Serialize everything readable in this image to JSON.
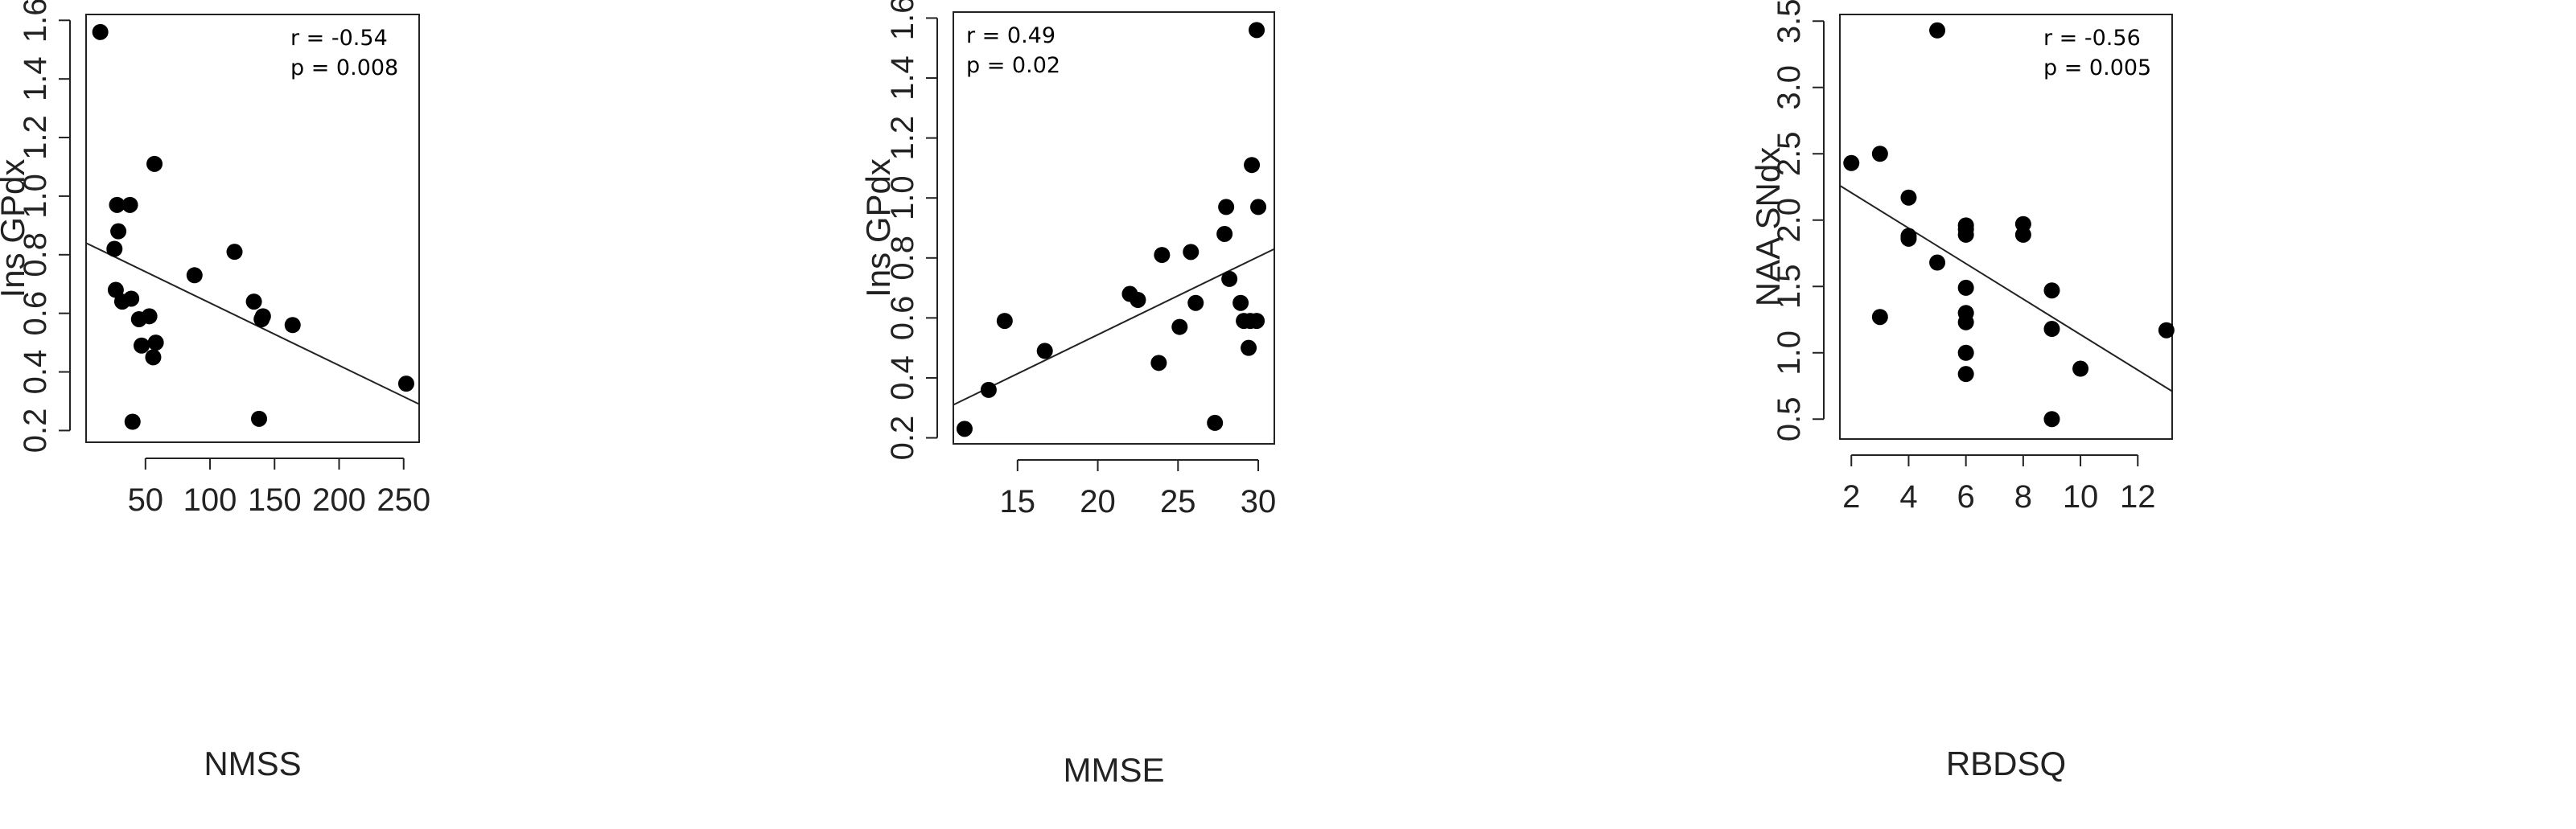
{
  "chart_data": [
    {
      "type": "scatter",
      "xlabel": "NMSS",
      "ylabel": "Ins GPdx",
      "xlim": [
        4,
        262
      ],
      "ylim": [
        0.16,
        1.62
      ],
      "xticks": [
        50,
        100,
        150,
        200,
        250
      ],
      "yticks": [
        0.2,
        0.4,
        0.6,
        0.8,
        1.0,
        1.2,
        1.4,
        1.6
      ],
      "xtick_labels": [
        "50",
        "100",
        "150",
        "200",
        "250"
      ],
      "ytick_labels": [
        "0.2",
        "0.4",
        "0.6",
        "0.8",
        "1.0",
        "1.2",
        "1.4",
        "1.6"
      ],
      "annotation": [
        "r = -0.54",
        "p = 0.008"
      ],
      "annotation_position": "top-right",
      "grid": false,
      "fit_line": {
        "x": [
          4,
          262
        ],
        "y": [
          0.84,
          0.29
        ]
      },
      "points": [
        {
          "x": 15,
          "y": 1.56
        },
        {
          "x": 57,
          "y": 1.11
        },
        {
          "x": 28,
          "y": 0.97
        },
        {
          "x": 38,
          "y": 0.97
        },
        {
          "x": 29,
          "y": 0.88
        },
        {
          "x": 26,
          "y": 0.82
        },
        {
          "x": 27,
          "y": 0.68
        },
        {
          "x": 32,
          "y": 0.64
        },
        {
          "x": 39,
          "y": 0.65
        },
        {
          "x": 45,
          "y": 0.58
        },
        {
          "x": 53,
          "y": 0.59
        },
        {
          "x": 58,
          "y": 0.5
        },
        {
          "x": 47,
          "y": 0.49
        },
        {
          "x": 56,
          "y": 0.45
        },
        {
          "x": 40,
          "y": 0.23
        },
        {
          "x": 88,
          "y": 0.73
        },
        {
          "x": 119,
          "y": 0.81
        },
        {
          "x": 134,
          "y": 0.64
        },
        {
          "x": 141,
          "y": 0.59
        },
        {
          "x": 140,
          "y": 0.58
        },
        {
          "x": 164,
          "y": 0.56
        },
        {
          "x": 138,
          "y": 0.24
        },
        {
          "x": 252,
          "y": 0.36
        }
      ]
    },
    {
      "type": "scatter",
      "xlabel": "MMSE",
      "ylabel": "Ins GPdx",
      "xlim": [
        11,
        31
      ],
      "ylim": [
        0.18,
        1.62
      ],
      "xticks": [
        15,
        20,
        25,
        30
      ],
      "yticks": [
        0.2,
        0.4,
        0.6,
        0.8,
        1.0,
        1.2,
        1.4,
        1.6
      ],
      "xtick_labels": [
        "15",
        "20",
        "25",
        "30"
      ],
      "ytick_labels": [
        "0.2",
        "0.4",
        "0.6",
        "0.8",
        "1.0",
        "1.2",
        "1.4",
        "1.6"
      ],
      "annotation": [
        "r = 0.49",
        "p = 0.02"
      ],
      "annotation_position": "top-left",
      "grid": false,
      "fit_line": {
        "x": [
          11,
          31
        ],
        "y": [
          0.31,
          0.83
        ]
      },
      "points": [
        {
          "x": 11.7,
          "y": 0.23
        },
        {
          "x": 13.2,
          "y": 0.36
        },
        {
          "x": 14.2,
          "y": 0.59
        },
        {
          "x": 16.7,
          "y": 0.49
        },
        {
          "x": 22.0,
          "y": 0.68
        },
        {
          "x": 22.5,
          "y": 0.66
        },
        {
          "x": 23.8,
          "y": 0.45
        },
        {
          "x": 24.0,
          "y": 0.81
        },
        {
          "x": 25.1,
          "y": 0.57
        },
        {
          "x": 25.8,
          "y": 0.82
        },
        {
          "x": 26.1,
          "y": 0.65
        },
        {
          "x": 27.3,
          "y": 0.25
        },
        {
          "x": 27.9,
          "y": 0.88
        },
        {
          "x": 28.0,
          "y": 0.97
        },
        {
          "x": 28.2,
          "y": 0.73
        },
        {
          "x": 28.9,
          "y": 0.65
        },
        {
          "x": 29.1,
          "y": 0.59
        },
        {
          "x": 29.4,
          "y": 0.5
        },
        {
          "x": 29.5,
          "y": 0.59
        },
        {
          "x": 29.6,
          "y": 1.11
        },
        {
          "x": 29.9,
          "y": 0.59
        },
        {
          "x": 30.0,
          "y": 0.97
        },
        {
          "x": 29.9,
          "y": 1.56
        }
      ]
    },
    {
      "type": "scatter",
      "xlabel": "RBDSQ",
      "ylabel": "NAA SNdx",
      "xlim": [
        1.6,
        13.2
      ],
      "ylim": [
        0.35,
        3.55
      ],
      "xticks": [
        2,
        4,
        6,
        8,
        10,
        12
      ],
      "yticks": [
        0.5,
        1.0,
        1.5,
        2.0,
        2.5,
        3.0,
        3.5
      ],
      "xtick_labels": [
        "2",
        "4",
        "6",
        "8",
        "10",
        "12"
      ],
      "ytick_labels": [
        "0.5",
        "1.0",
        "1.5",
        "2.0",
        "2.5",
        "3.0",
        "3.5"
      ],
      "annotation": [
        "r = -0.56",
        "p = 0.005"
      ],
      "annotation_position": "top-right",
      "grid": false,
      "fit_line": {
        "x": [
          1.6,
          13.2
        ],
        "y": [
          2.26,
          0.71
        ]
      },
      "points": [
        {
          "x": 2,
          "y": 2.43
        },
        {
          "x": 3,
          "y": 2.5
        },
        {
          "x": 3,
          "y": 1.27
        },
        {
          "x": 4,
          "y": 2.17
        },
        {
          "x": 4,
          "y": 1.88
        },
        {
          "x": 4,
          "y": 1.86
        },
        {
          "x": 5,
          "y": 3.43
        },
        {
          "x": 5,
          "y": 1.68
        },
        {
          "x": 6,
          "y": 1.96
        },
        {
          "x": 6,
          "y": 1.93
        },
        {
          "x": 6,
          "y": 1.89
        },
        {
          "x": 6,
          "y": 1.49
        },
        {
          "x": 6,
          "y": 1.3
        },
        {
          "x": 6,
          "y": 1.23
        },
        {
          "x": 6,
          "y": 1.0
        },
        {
          "x": 6,
          "y": 0.84
        },
        {
          "x": 8,
          "y": 1.97
        },
        {
          "x": 8,
          "y": 1.89
        },
        {
          "x": 9,
          "y": 1.47
        },
        {
          "x": 9,
          "y": 1.18
        },
        {
          "x": 9,
          "y": 0.5
        },
        {
          "x": 10,
          "y": 0.88
        },
        {
          "x": 13,
          "y": 1.17
        }
      ]
    }
  ]
}
